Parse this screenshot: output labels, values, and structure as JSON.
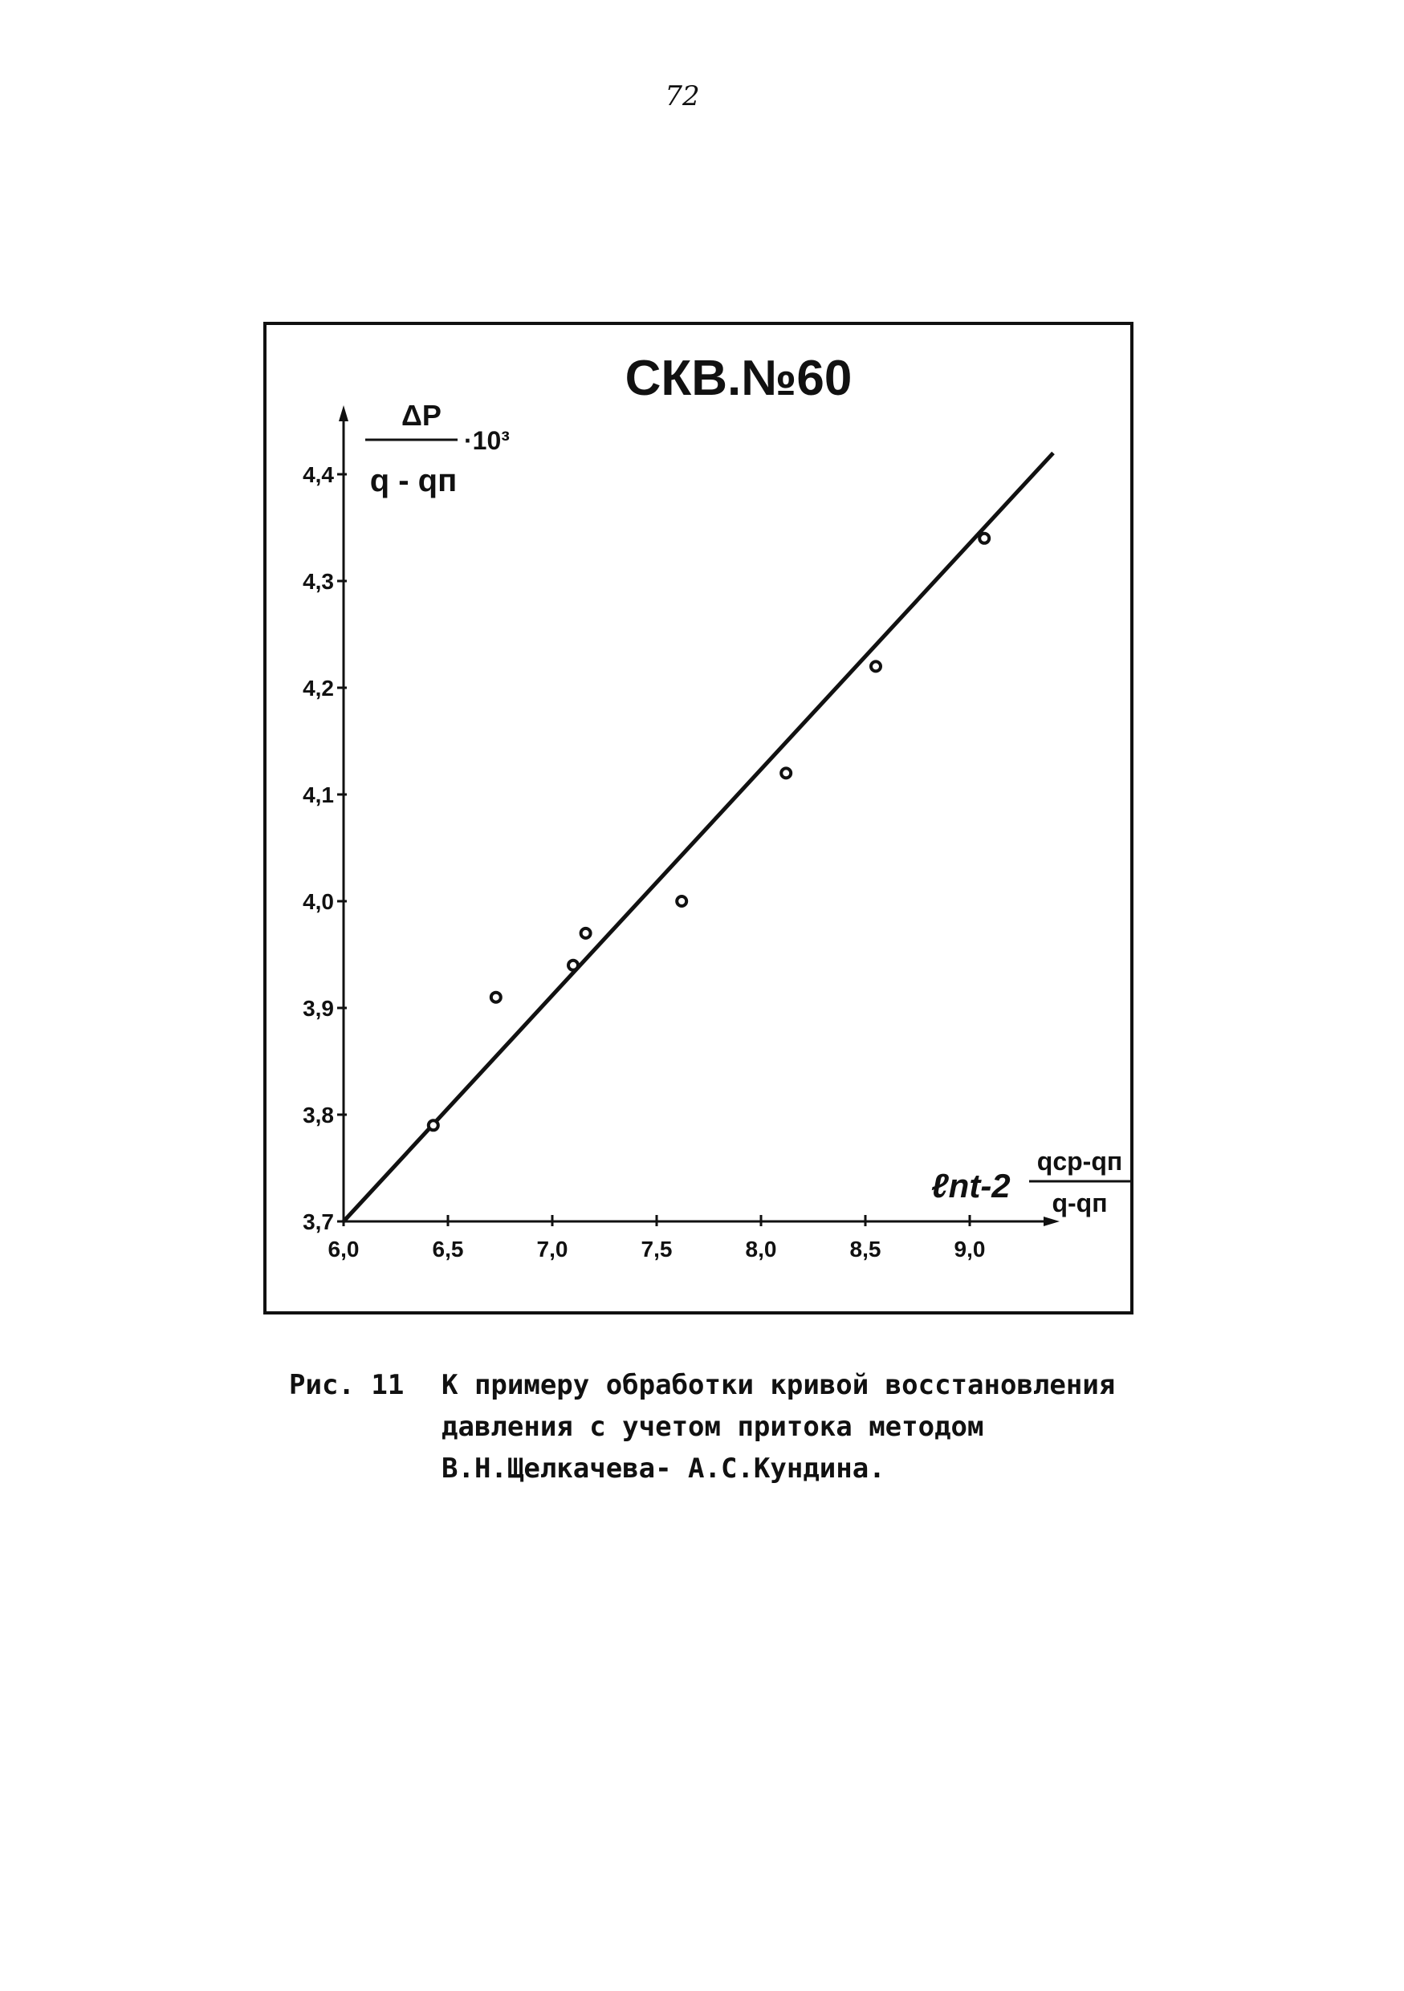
{
  "page": {
    "number": "72"
  },
  "chart_data": {
    "type": "scatter",
    "title": "СКВ.№60",
    "ylabel": {
      "numerator": "ΔP",
      "denominator": "q - qп",
      "multiplier": "·10³"
    },
    "xlabel": {
      "prefix": "ℓnt-2",
      "numerator": "qср-qп",
      "denominator": "q-qп"
    },
    "xlim": [
      6.0,
      9.4
    ],
    "ylim": [
      3.7,
      4.42
    ],
    "x_ticks": [
      6.0,
      6.5,
      7.0,
      7.5,
      8.0,
      8.5,
      9.0
    ],
    "x_tick_labels": [
      "6,0",
      "6,5",
      "7,0",
      "7,5",
      "8,0",
      "8,5",
      "9,0"
    ],
    "y_ticks": [
      3.7,
      3.8,
      3.9,
      4.0,
      4.1,
      4.2,
      4.3,
      4.4
    ],
    "y_tick_labels": [
      "3,7",
      "3,8",
      "3,9",
      "4,0",
      "4,1",
      "4,2",
      "4,3",
      "4,4"
    ],
    "series": [
      {
        "points": [
          {
            "x": 6.43,
            "y": 3.79
          },
          {
            "x": 6.73,
            "y": 3.91
          },
          {
            "x": 7.1,
            "y": 3.94
          },
          {
            "x": 7.16,
            "y": 3.97
          },
          {
            "x": 7.62,
            "y": 4.0
          },
          {
            "x": 8.12,
            "y": 4.12
          },
          {
            "x": 8.55,
            "y": 4.22
          },
          {
            "x": 9.07,
            "y": 4.34
          }
        ]
      }
    ],
    "fit_line": {
      "x": [
        6.0,
        9.4
      ],
      "y": [
        3.7,
        4.42
      ]
    },
    "grid": false,
    "legend": "none"
  },
  "caption": {
    "label": "Рис. 11",
    "text": "К примеру обработки кривой восстановления давления с учетом притока методом В.Н.Щелкачева- А.С.Кундина."
  }
}
